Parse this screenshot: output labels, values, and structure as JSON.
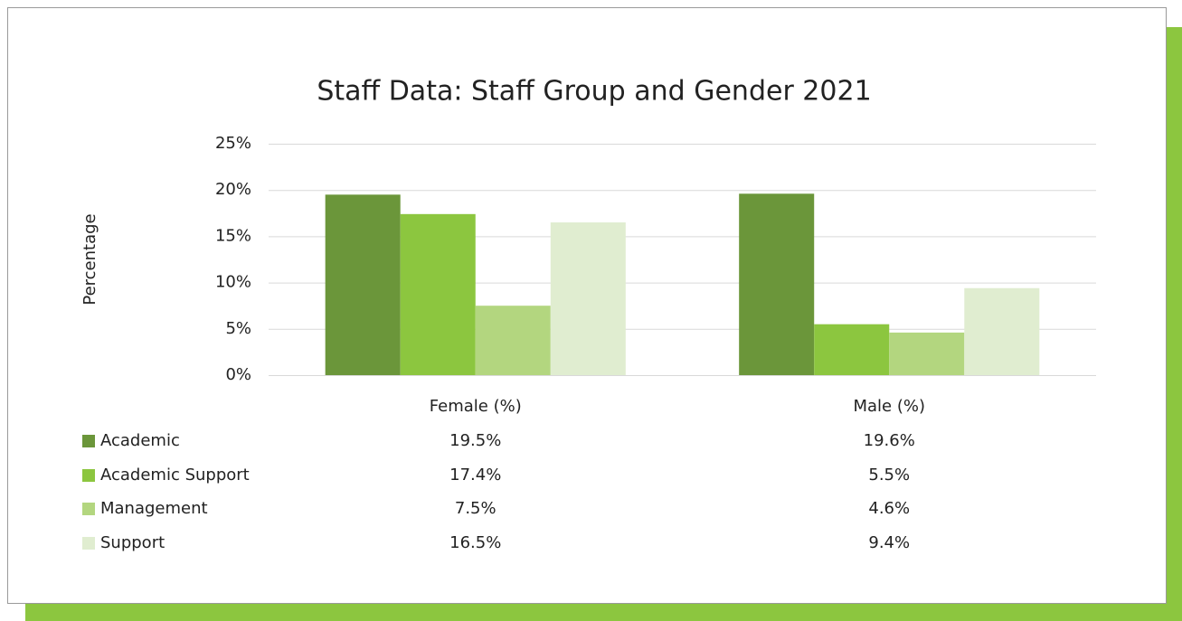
{
  "chart_data": {
    "type": "bar",
    "title": "Staff Data: Staff Group and Gender 2021",
    "y_label": "Percentage",
    "categories": [
      "Female (%)",
      "Male (%)"
    ],
    "series": [
      {
        "name": "Academic",
        "color": "#6b963a",
        "values": [
          19.5,
          19.6
        ],
        "value_labels": [
          "19.5%",
          "19.6%"
        ]
      },
      {
        "name": "Academic Support",
        "color": "#8cc63f",
        "values": [
          17.4,
          5.5
        ],
        "value_labels": [
          "17.4%",
          "5.5%"
        ]
      },
      {
        "name": "Management",
        "color": "#b3d67f",
        "values": [
          7.5,
          4.6
        ],
        "value_labels": [
          "7.5%",
          "4.6%"
        ]
      },
      {
        "name": "Support",
        "color": "#e0edd0",
        "values": [
          16.5,
          9.4
        ],
        "value_labels": [
          "16.5%",
          "9.4%"
        ]
      }
    ],
    "ylim": [
      0,
      25
    ],
    "yticks": [
      {
        "value": 0,
        "label": "0%"
      },
      {
        "value": 5,
        "label": "5%"
      },
      {
        "value": 10,
        "label": "10%"
      },
      {
        "value": 15,
        "label": "15%"
      },
      {
        "value": 20,
        "label": "20%"
      },
      {
        "value": 25,
        "label": "25%"
      }
    ],
    "grid": true
  }
}
